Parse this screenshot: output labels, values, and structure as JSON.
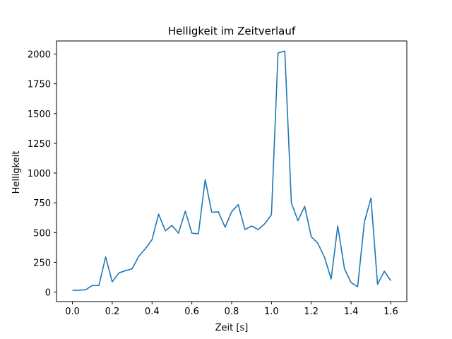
{
  "chart_data": {
    "type": "line",
    "title": "Helligkeit im Zeitverlauf",
    "xlabel": "Zeit [s]",
    "ylabel": "Helligkeit",
    "xlim": [
      -0.08,
      1.68
    ],
    "ylim": [
      -80,
      2110
    ],
    "x_ticks": [
      0.0,
      0.2,
      0.4,
      0.6,
      0.8,
      1.0,
      1.2,
      1.4,
      1.6
    ],
    "x_tick_labels": [
      "0.0",
      "0.2",
      "0.4",
      "0.6",
      "0.8",
      "1.0",
      "1.2",
      "1.4",
      "1.6"
    ],
    "y_ticks": [
      0,
      250,
      500,
      750,
      1000,
      1250,
      1500,
      1750,
      2000
    ],
    "y_tick_labels": [
      "0",
      "250",
      "500",
      "750",
      "1000",
      "1250",
      "1500",
      "1750",
      "2000"
    ],
    "grid": false,
    "line_color": "#1f77b4",
    "series": [
      {
        "x": [
          0.0,
          0.033,
          0.067,
          0.1,
          0.133,
          0.167,
          0.2,
          0.233,
          0.267,
          0.3,
          0.333,
          0.367,
          0.4,
          0.433,
          0.467,
          0.5,
          0.533,
          0.567,
          0.6,
          0.633,
          0.667,
          0.7,
          0.733,
          0.767,
          0.8,
          0.833,
          0.867,
          0.9,
          0.933,
          0.967,
          1.0,
          1.033,
          1.067,
          1.1,
          1.133,
          1.167,
          1.2,
          1.233,
          1.267,
          1.3,
          1.333,
          1.367,
          1.4,
          1.433,
          1.467,
          1.5,
          1.533,
          1.567,
          1.6
        ],
        "y": [
          15,
          15,
          20,
          55,
          55,
          295,
          85,
          160,
          180,
          195,
          300,
          365,
          440,
          655,
          515,
          560,
          495,
          680,
          495,
          490,
          945,
          670,
          675,
          545,
          675,
          735,
          525,
          555,
          525,
          575,
          650,
          2010,
          2025,
          750,
          600,
          720,
          465,
          410,
          290,
          110,
          555,
          195,
          80,
          45,
          590,
          790,
          65,
          175,
          95
        ]
      }
    ]
  }
}
